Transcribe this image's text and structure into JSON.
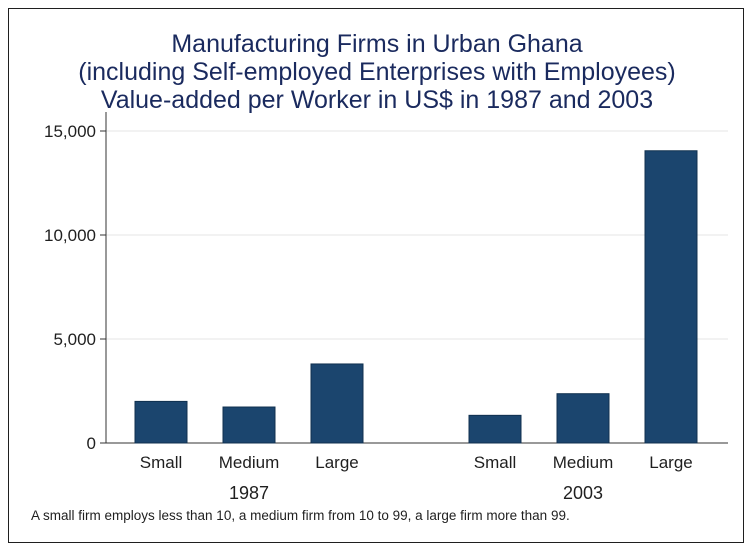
{
  "chart_data": {
    "type": "bar",
    "title_lines": [
      "Manufacturing Firms in Urban Ghana",
      "(including Self-employed Enterprises with Employees)",
      "Value-added per Worker in US$ in 1987 and 2003"
    ],
    "groups": [
      {
        "label": "1987",
        "categories": [
          "Small",
          "Medium",
          "Large"
        ],
        "values": [
          2000,
          1730,
          3800
        ]
      },
      {
        "label": "2003",
        "categories": [
          "Small",
          "Medium",
          "Large"
        ],
        "values": [
          1330,
          2370,
          14050
        ]
      }
    ],
    "xlabel": "",
    "ylabel": "",
    "ylim": [
      0,
      15000
    ],
    "yticks": [
      0,
      5000,
      10000,
      15000
    ],
    "ytick_labels": [
      "0",
      "5,000",
      "10,000",
      "15,000"
    ],
    "grid": true,
    "bar_color": "#1b456e",
    "note": "A small firm employs less than 10, a medium firm from 10 to 99, a large firm more than 99."
  }
}
